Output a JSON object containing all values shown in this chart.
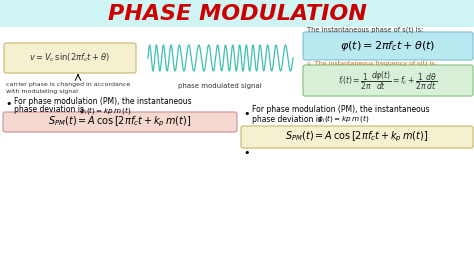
{
  "title": "PHASE MODULATION",
  "title_color": "#cc0000",
  "title_fontsize": 16,
  "bg_color": "#ffffff",
  "header_bg": "#cff5f5",
  "formula_box1_color": "#f5f0d0",
  "formula_box2_color": "#b8e8f0",
  "formula_box3_color": "#d8f0d8",
  "formula_box4_left_color": "#f5d8d0",
  "formula_box4_right_color": "#f5f0d0",
  "formula1": "$v = V_c\\,\\sin(2\\pi f_c t + \\theta)$",
  "formula2": "$\\varphi(t) = 2\\pi f_c t + \\theta(t)$",
  "formula3": "$f_i(t) = \\dfrac{1}{2\\pi}\\dfrac{d\\varphi(t)}{dt} = f_c + \\dfrac{1}{2\\pi}\\dfrac{d\\theta}{dt}$",
  "formula4_left": "$S_{PM}(t) = A\\,\\cos\\left[2\\pi f_c t + k_p\\,m(t)\\right]$",
  "formula4_right": "$S_{PM}(t) = A\\,\\cos\\left[2\\pi f_c t + k_p\\,m(t)\\right]$",
  "label_carrier": "carrier phase is changed in accordance\nwith modulating signal",
  "label_signal": "phase modulated signal",
  "label_phase": "The instantaneous phase of s(t) is:",
  "label_freq": "o  The instantaneous frequency of s(t) is:",
  "label_pm1": "For phase modulation (PM), the instantaneous",
  "label_pm2a": "phase deviation is",
  "label_pm2b": "  $\\phi_i(t) = kp\\,m\\,(t)$",
  "wave_color": "#40c0b0",
  "wave_linewidth": 0.9
}
